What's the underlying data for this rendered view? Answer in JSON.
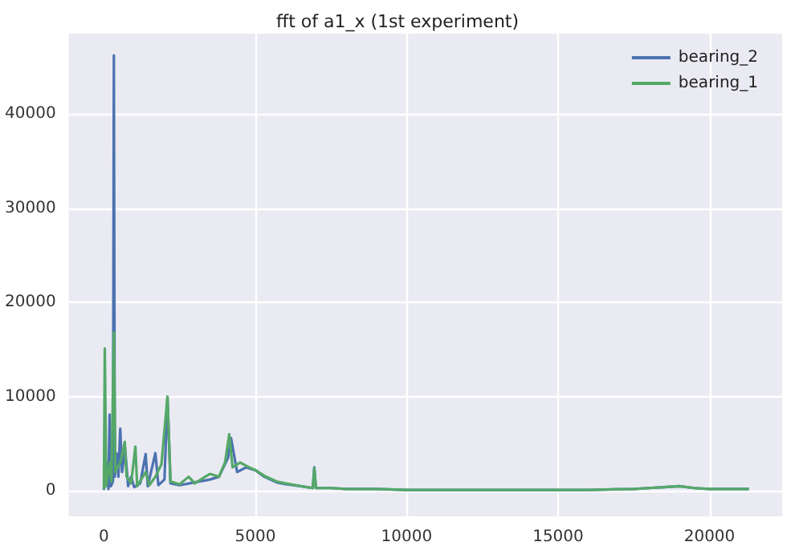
{
  "chart_data": {
    "type": "line",
    "title": "fft of a1_x (1st experiment)",
    "series": [
      {
        "name": "bearing_2",
        "color": "#4c72b0",
        "x": [
          0,
          100,
          150,
          190,
          230,
          300,
          330,
          360,
          420,
          480,
          540,
          600,
          700,
          800,
          900,
          1000,
          1200,
          1380,
          1450,
          1700,
          1800,
          2000,
          2100,
          2200,
          2500,
          3000,
          3500,
          3800,
          4100,
          4200,
          4400,
          4700,
          5000,
          5300,
          5700,
          6000,
          6500,
          6900,
          6950,
          7000,
          7500,
          8000,
          9000,
          10000,
          12000,
          14000,
          16000,
          17500,
          18000,
          18500,
          19000,
          19500,
          20000,
          21000,
          21300
        ],
        "values": [
          100,
          3000,
          200,
          8100,
          500,
          1000,
          46200,
          1500,
          4000,
          1500,
          6600,
          2000,
          4500,
          500,
          1500,
          400,
          800,
          3900,
          500,
          4000,
          600,
          1200,
          9800,
          800,
          600,
          900,
          1200,
          1500,
          3500,
          5600,
          2000,
          2500,
          2200,
          1500,
          900,
          700,
          500,
          300,
          2500,
          300,
          300,
          200,
          200,
          100,
          100,
          100,
          100,
          200,
          300,
          400,
          500,
          300,
          200,
          200,
          200
        ]
      },
      {
        "name": "bearing_1",
        "color": "#55a868",
        "x": [
          0,
          30,
          80,
          190,
          250,
          330,
          380,
          540,
          690,
          750,
          900,
          1040,
          1100,
          1380,
          1500,
          1700,
          1900,
          2100,
          2200,
          2500,
          2800,
          3000,
          3500,
          3800,
          4000,
          4140,
          4250,
          4500,
          4800,
          5000,
          5300,
          5700,
          6000,
          6500,
          6900,
          6950,
          7000,
          7500,
          8000,
          9000,
          10000,
          12000,
          14000,
          16000,
          17500,
          18000,
          18500,
          19000,
          19500,
          20000,
          21000,
          21300
        ],
        "values": [
          200,
          15100,
          500,
          3000,
          1000,
          16800,
          2000,
          3000,
          5200,
          1500,
          800,
          4700,
          500,
          2000,
          600,
          1500,
          2800,
          10000,
          1000,
          700,
          1500,
          800,
          1800,
          1500,
          3000,
          6000,
          2500,
          3000,
          2500,
          2200,
          1600,
          1000,
          800,
          500,
          300,
          2400,
          300,
          300,
          200,
          200,
          100,
          100,
          100,
          100,
          200,
          300,
          400,
          500,
          300,
          200,
          200,
          200
        ]
      }
    ],
    "xlim": [
      -1160,
      22400
    ],
    "xticks": [
      0,
      5000,
      10000,
      15000,
      20000
    ],
    "ylim": [
      -2700,
      48500
    ],
    "yticks": [
      0,
      10000,
      20000,
      30000,
      40000
    ],
    "grid": true,
    "legend": "top right",
    "marker": "none",
    "line_style": "solid"
  }
}
